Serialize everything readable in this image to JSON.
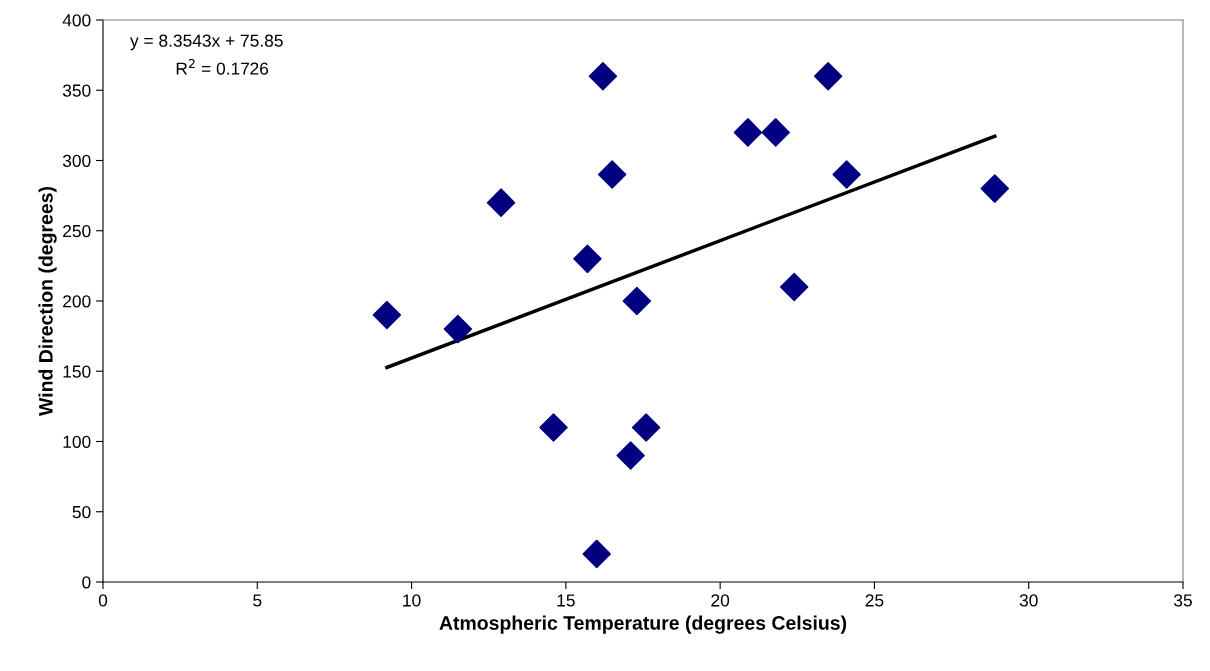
{
  "chart_data": {
    "type": "scatter",
    "xlabel": "Atmospheric Temperature (degrees Celsius)",
    "ylabel": "Wind Direction (degrees)",
    "xlim": [
      0,
      35
    ],
    "xticks": [
      0,
      5,
      10,
      15,
      20,
      25,
      30,
      35
    ],
    "ylim": [
      0,
      400
    ],
    "yticks": [
      0,
      50,
      100,
      150,
      200,
      250,
      300,
      350,
      400
    ],
    "grid": false,
    "legend": false,
    "marker": "diamond",
    "annotations": [
      "y = 8.3543x + 75.85",
      "R$^{2}$ = 0.1726"
    ],
    "series": [
      {
        "color": "#000080",
        "x": [
          9.2,
          11.5,
          12.9,
          14.6,
          15.7,
          16.0,
          16.2,
          16.5,
          17.3,
          17.1,
          17.6,
          20.9,
          21.8,
          22.4,
          23.5,
          24.1,
          28.9
        ],
        "values": [
          190,
          180,
          270,
          110,
          230,
          20,
          360,
          290,
          200,
          90,
          110,
          320,
          320,
          210,
          360,
          290,
          280
        ]
      },
      {
        "type": "line",
        "color": "#000000",
        "marker": "none",
        "x": [
          9.2,
          28.9
        ],
        "values": [
          152.7,
          317.3
        ]
      }
    ]
  }
}
